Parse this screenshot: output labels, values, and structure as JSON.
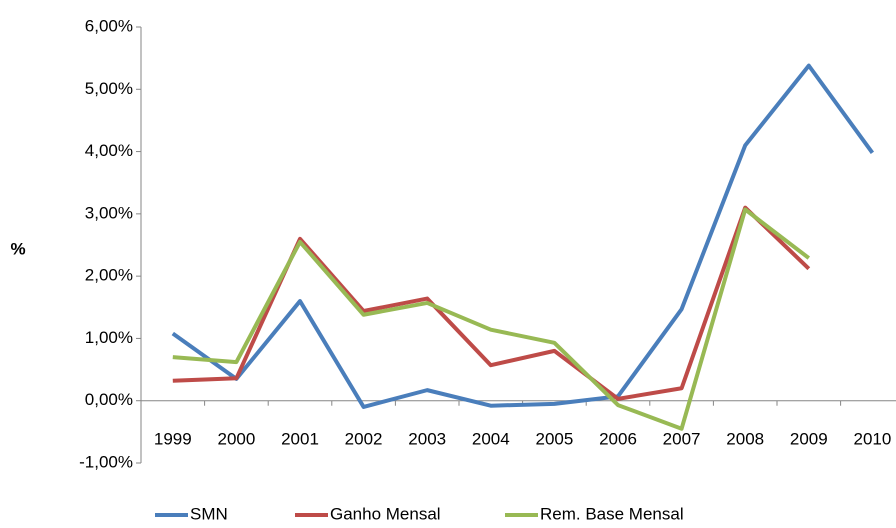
{
  "chart_data": {
    "type": "line",
    "y_label": "%",
    "categories": [
      "1999",
      "2000",
      "2001",
      "2002",
      "2003",
      "2004",
      "2005",
      "2006",
      "2007",
      "2008",
      "2009",
      "2010"
    ],
    "series": [
      {
        "name": "SMN",
        "color": "#4a7ebb",
        "values": [
          1.08,
          0.35,
          1.6,
          -0.1,
          0.17,
          -0.08,
          -0.05,
          0.07,
          1.47,
          4.1,
          5.38,
          3.98
        ]
      },
      {
        "name": "Ganho Mensal",
        "color": "#be4b48",
        "values": [
          0.32,
          0.36,
          2.6,
          1.44,
          1.64,
          0.57,
          0.8,
          0.03,
          0.2,
          3.1,
          2.12,
          null
        ]
      },
      {
        "name": "Rem. Base Mensal",
        "color": "#98b954",
        "values": [
          0.7,
          0.62,
          2.55,
          1.38,
          1.57,
          1.14,
          0.93,
          -0.07,
          -0.45,
          3.07,
          2.29,
          null
        ]
      }
    ],
    "ylim": [
      -1,
      6
    ],
    "yticks": [
      {
        "value": -1,
        "label": "-1,00%"
      },
      {
        "value": 0,
        "label": "0,00%"
      },
      {
        "value": 1,
        "label": "1,00%"
      },
      {
        "value": 2,
        "label": "2,00%"
      },
      {
        "value": 3,
        "label": "3,00%"
      },
      {
        "value": 4,
        "label": "4,00%"
      },
      {
        "value": 5,
        "label": "5,00%"
      },
      {
        "value": 6,
        "label": "6,00%"
      }
    ],
    "grid": true,
    "legend": "bottom"
  }
}
